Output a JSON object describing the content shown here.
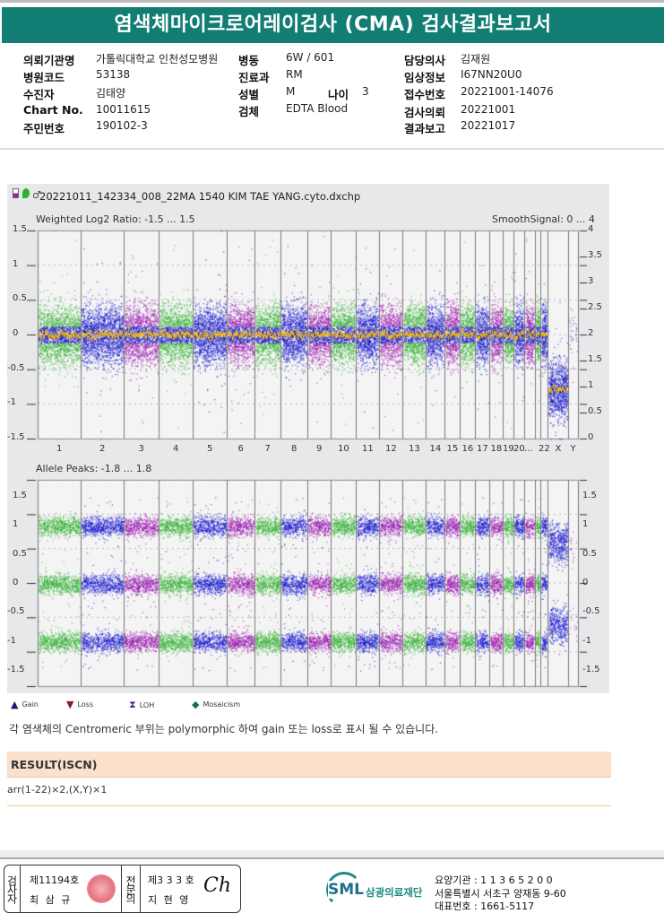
{
  "title": "염색체마이크로어레이검사 (CMA) 검사결과보고서",
  "info": {
    "institution_label": "의뢰기관명",
    "institution": "가톨릭대학교 인천성모병원",
    "hospital_code_label": "병원코드",
    "hospital_code": "53138",
    "patient_label": "수진자",
    "patient": "김태양",
    "chart_label": "Chart No.",
    "chart": "10011615",
    "id_label": "주민번호",
    "id": "190102-3",
    "ward_label": "병동",
    "ward": "6W / 601",
    "dept_label": "진료과",
    "dept": "RM",
    "sex_label": "성별",
    "sex": "M",
    "age_label": "나이",
    "age": "3",
    "specimen_label": "검체",
    "specimen": "EDTA Blood",
    "doctor_label": "담당의사",
    "doctor": "김재원",
    "clinical_label": "임상정보",
    "clinical": "I67NN20U0",
    "receipt_label": "접수번호",
    "receipt": "20221001-14076",
    "request_label": "검사의뢰",
    "request": "20221001",
    "report_label": "결과보고",
    "report": "20221017"
  },
  "plot": {
    "filename": "20221011_142334_008_22MA 1540 KIM TAE YANG.cyto.dxchp",
    "top_label": "Weighted Log2 Ratio: -1.5 ... 1.5",
    "smooth_label": "SmoothSignal: 0 ... 4",
    "bottom_label": "Allele Peaks: -1.8 ... 1.8"
  },
  "chart_data": [
    {
      "type": "scatter",
      "title": "Weighted Log2 Ratio",
      "ylim": [
        -1.5,
        1.5
      ],
      "y2lim": [
        0,
        4
      ],
      "yticks": [
        "1.5",
        "1",
        "0.5",
        "0",
        "-0.5",
        "-1",
        "-1.5"
      ],
      "y2ticks": [
        "4",
        "3.5",
        "3",
        "2.5",
        "2",
        "1.5",
        "1",
        "0.5",
        "0"
      ],
      "categories": [
        "1",
        "2",
        "3",
        "4",
        "5",
        "6",
        "7",
        "8",
        "9",
        "10",
        "11",
        "12",
        "13",
        "14",
        "15",
        "16",
        "17",
        "18",
        "19",
        "20",
        "...",
        "22",
        "X",
        "Y"
      ],
      "smooth_signal": {
        "autosomes": 2,
        "X": 1,
        "Y": 1
      },
      "log2_center": {
        "autosomes": 0,
        "X": -0.8
      }
    },
    {
      "type": "scatter",
      "title": "Allele Peaks",
      "ylim": [
        -1.8,
        1.8
      ],
      "yticks": [
        "1.5",
        "1",
        "0.5",
        "0",
        "-0.5",
        "-1",
        "-1.5"
      ],
      "peaks": {
        "autosomes": [
          1,
          0,
          -1
        ],
        "X": [
          0.7,
          -0.7
        ]
      }
    }
  ],
  "legend": [
    {
      "icon": "gain",
      "label": "Gain",
      "color": "#1a1a6e"
    },
    {
      "icon": "loss",
      "label": "Loss",
      "color": "#8b1a1a"
    },
    {
      "icon": "loh",
      "label": "LOH",
      "color": "#5b2a8a"
    },
    {
      "icon": "mosaicism",
      "label": "Mosaicism",
      "color": "#1a6e5a"
    }
  ],
  "note": "각 염색체의 Centromeric 부위는 polymorphic 하여 gain 또는 loss로 표시 될 수 있습니다.",
  "result": {
    "header": "RESULT(ISCN)",
    "value": "arr(1-22)×2,(X,Y)×1"
  },
  "footer": {
    "examiner_label": "검사자",
    "examiner_no": "제11194호",
    "examiner_name": "최 삼 규",
    "specialist_label": "전문의",
    "specialist_no": "제3 3 3 호",
    "specialist_name": "지 현 영",
    "logo": "SML",
    "org": "삼광의료재단",
    "line1": "요양기관 : 1 1 3 6 5 2 0 0",
    "line2": "서울특별시 서초구 양재동 9-60",
    "line3": "대표번호 : 1661-5117"
  }
}
